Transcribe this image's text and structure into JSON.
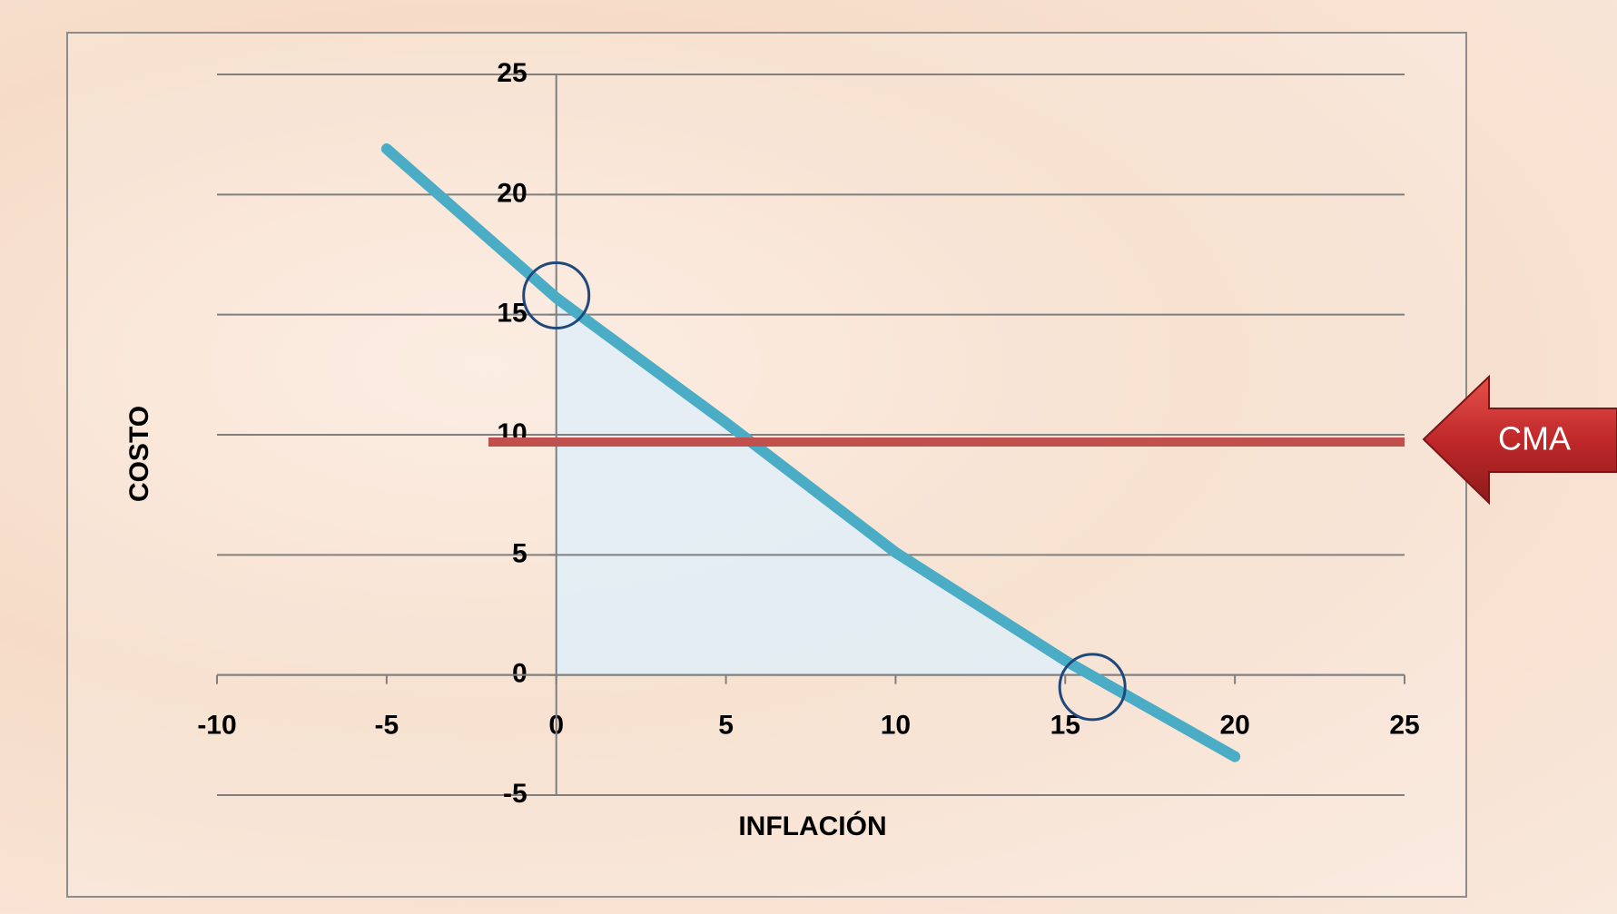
{
  "chart_data": {
    "type": "line",
    "x_label": "INFLACIÓN",
    "y_label": "COSTO",
    "xlim": [
      -10,
      25
    ],
    "ylim": [
      -5,
      25
    ],
    "xticks": [
      -10,
      -5,
      0,
      5,
      10,
      15,
      20,
      25
    ],
    "yticks": [
      -5,
      0,
      5,
      10,
      15,
      20,
      25
    ],
    "grid": true,
    "series": [
      {
        "color": "#4bacc6",
        "x": [
          -5,
          0,
          5,
          10,
          15,
          20
        ],
        "values": [
          21.9,
          15.7,
          10.5,
          5.1,
          0.6,
          -3.4
        ]
      },
      {
        "name": "CMA",
        "color": "#c0504d",
        "x": [
          -2,
          25
        ],
        "values": [
          9.7,
          9.7
        ]
      }
    ],
    "highlights": {
      "color": "#1f497d",
      "x": [
        0,
        15.8
      ],
      "values": [
        15.8,
        -0.5
      ]
    }
  }
}
